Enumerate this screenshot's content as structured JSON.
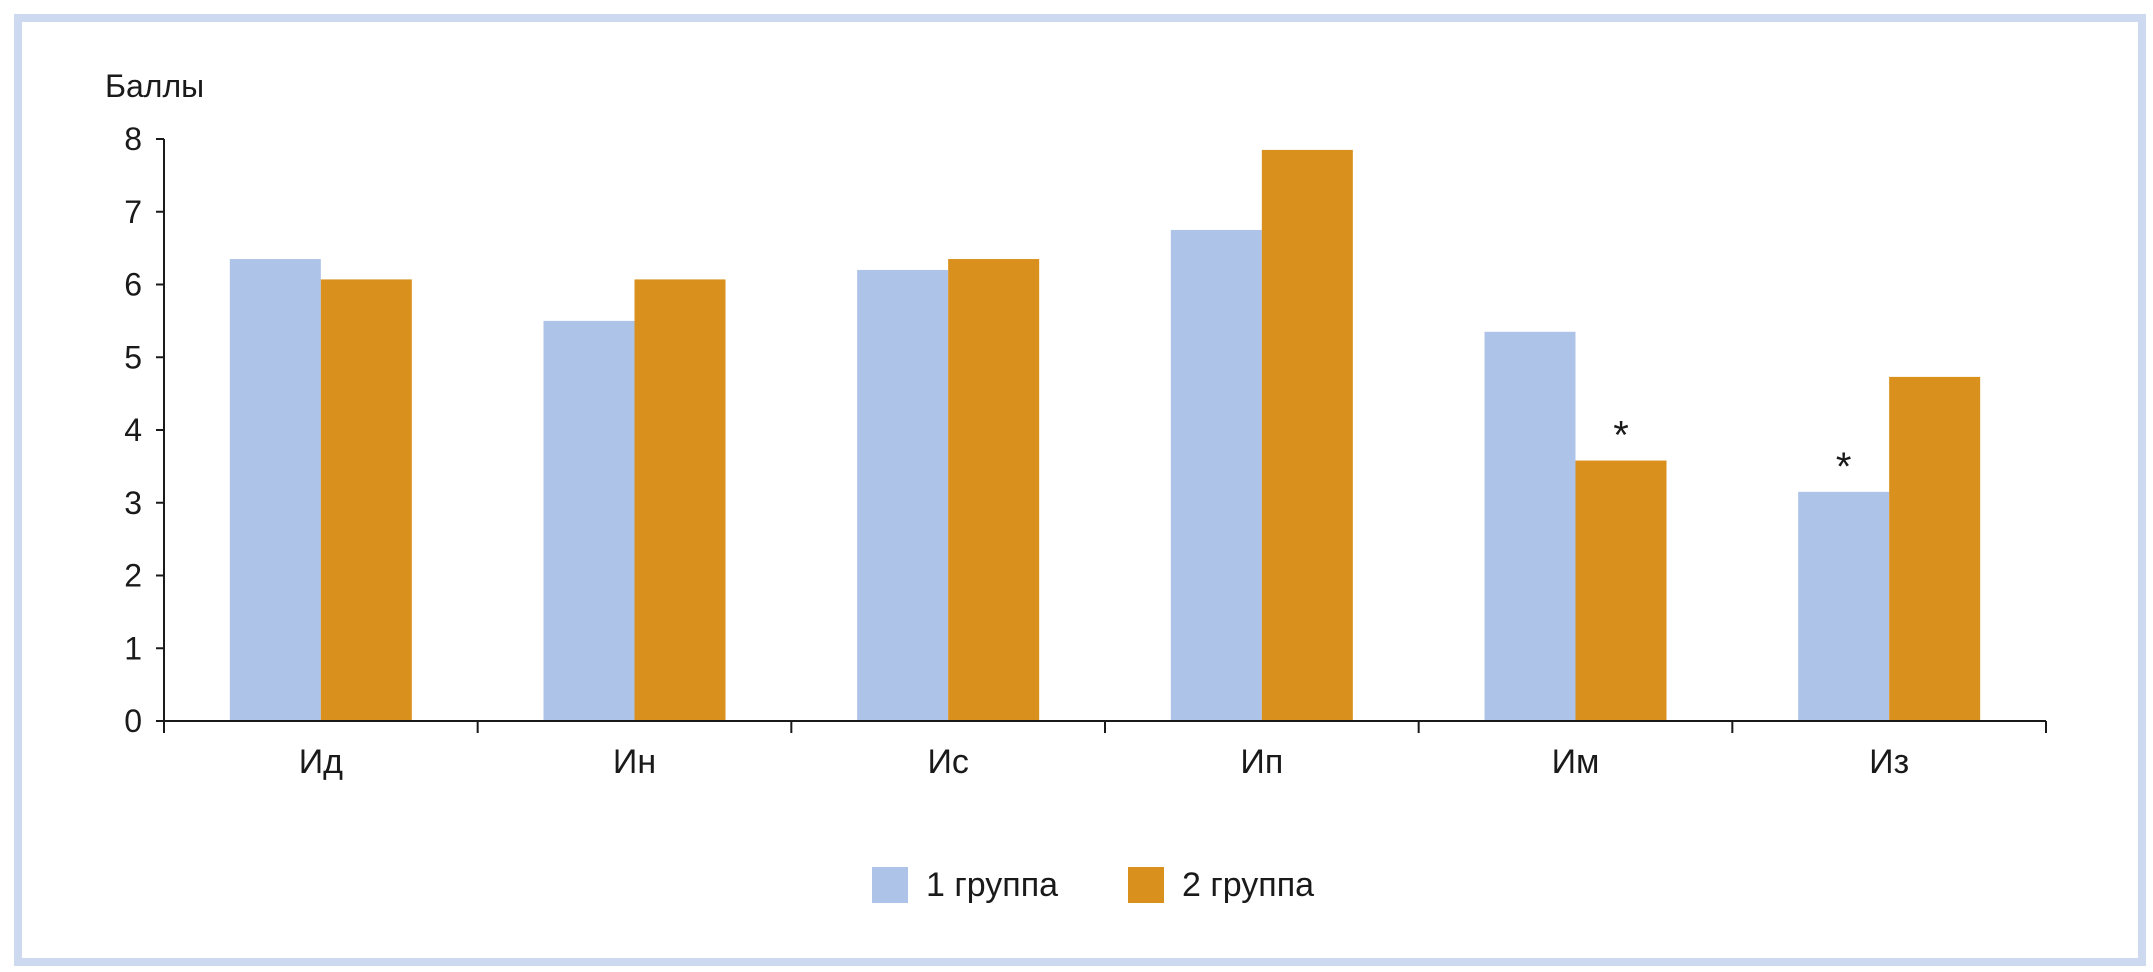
{
  "colors": {
    "frame": "#cdd9ee",
    "series1": "#adc3e7",
    "series2": "#da901c",
    "axis": "#1a1a1a"
  },
  "chart_data": {
    "type": "bar",
    "title": "",
    "ylabel": "Баллы",
    "xlabel": "",
    "ylim": [
      0,
      8
    ],
    "yticks": [
      0,
      1,
      2,
      3,
      4,
      5,
      6,
      7,
      8
    ],
    "categories": [
      "Ид",
      "Ин",
      "Ис",
      "Ип",
      "Им",
      "Из"
    ],
    "series": [
      {
        "name": "1 группа",
        "values": [
          6.35,
          5.5,
          6.2,
          6.75,
          5.35,
          3.15
        ]
      },
      {
        "name": "2 группа",
        "values": [
          6.07,
          6.07,
          6.35,
          7.85,
          3.58,
          4.73
        ]
      }
    ],
    "annotations": [
      {
        "text": "*",
        "category": "Им",
        "series": "2 группа"
      },
      {
        "text": "*",
        "category": "Из",
        "series": "1 группа"
      }
    ],
    "legend": "bottom-center",
    "grid": false
  }
}
